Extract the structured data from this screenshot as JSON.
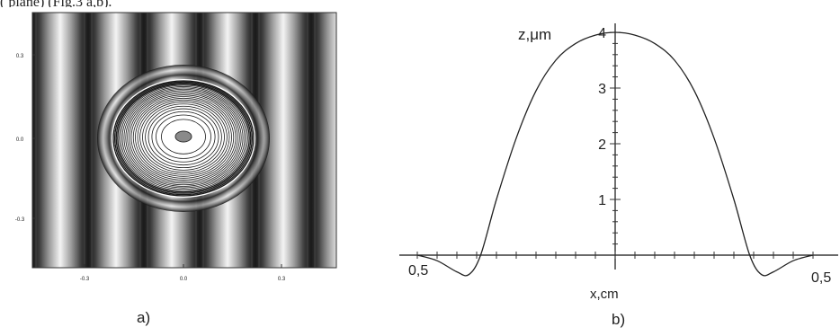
{
  "top_caption": "(                        plane) (Fig.3 a,b).",
  "figure_a": {
    "label": "a)",
    "y_ticks": [
      "0.3",
      "0.0",
      "-0.3"
    ],
    "x_ticks": [
      "-0.3",
      "0.0",
      "0.3"
    ]
  },
  "figure_b": {
    "label": "b)",
    "ylabel": "z,μm",
    "xlabel": "x,cm",
    "x_left_label": "0,5",
    "x_right_label": "0,5",
    "chart_data": {
      "type": "line",
      "title": "",
      "xlabel": "x,cm",
      "ylabel": "z,μm",
      "xlim": [
        -0.5,
        0.5
      ],
      "ylim": [
        -0.4,
        4
      ],
      "y_ticks": [
        "1",
        "2",
        "3",
        "4"
      ],
      "x_tick_labels": [
        "0,5",
        "0,5"
      ],
      "grid": false,
      "series": [
        {
          "x": [
            -0.5,
            -0.45,
            -0.4,
            -0.37,
            -0.34,
            -0.3,
            -0.25,
            -0.2,
            -0.15,
            -0.1,
            -0.05,
            0.0,
            0.05,
            0.1,
            0.15,
            0.2,
            0.25,
            0.3,
            0.34,
            0.37,
            0.4,
            0.45,
            0.5
          ],
          "values": [
            0.0,
            -0.1,
            -0.3,
            -0.35,
            0.0,
            1.0,
            2.1,
            2.95,
            3.5,
            3.8,
            3.95,
            4.0,
            3.95,
            3.8,
            3.5,
            2.95,
            2.1,
            1.0,
            0.0,
            -0.35,
            -0.3,
            -0.1,
            0.0
          ]
        }
      ]
    }
  }
}
